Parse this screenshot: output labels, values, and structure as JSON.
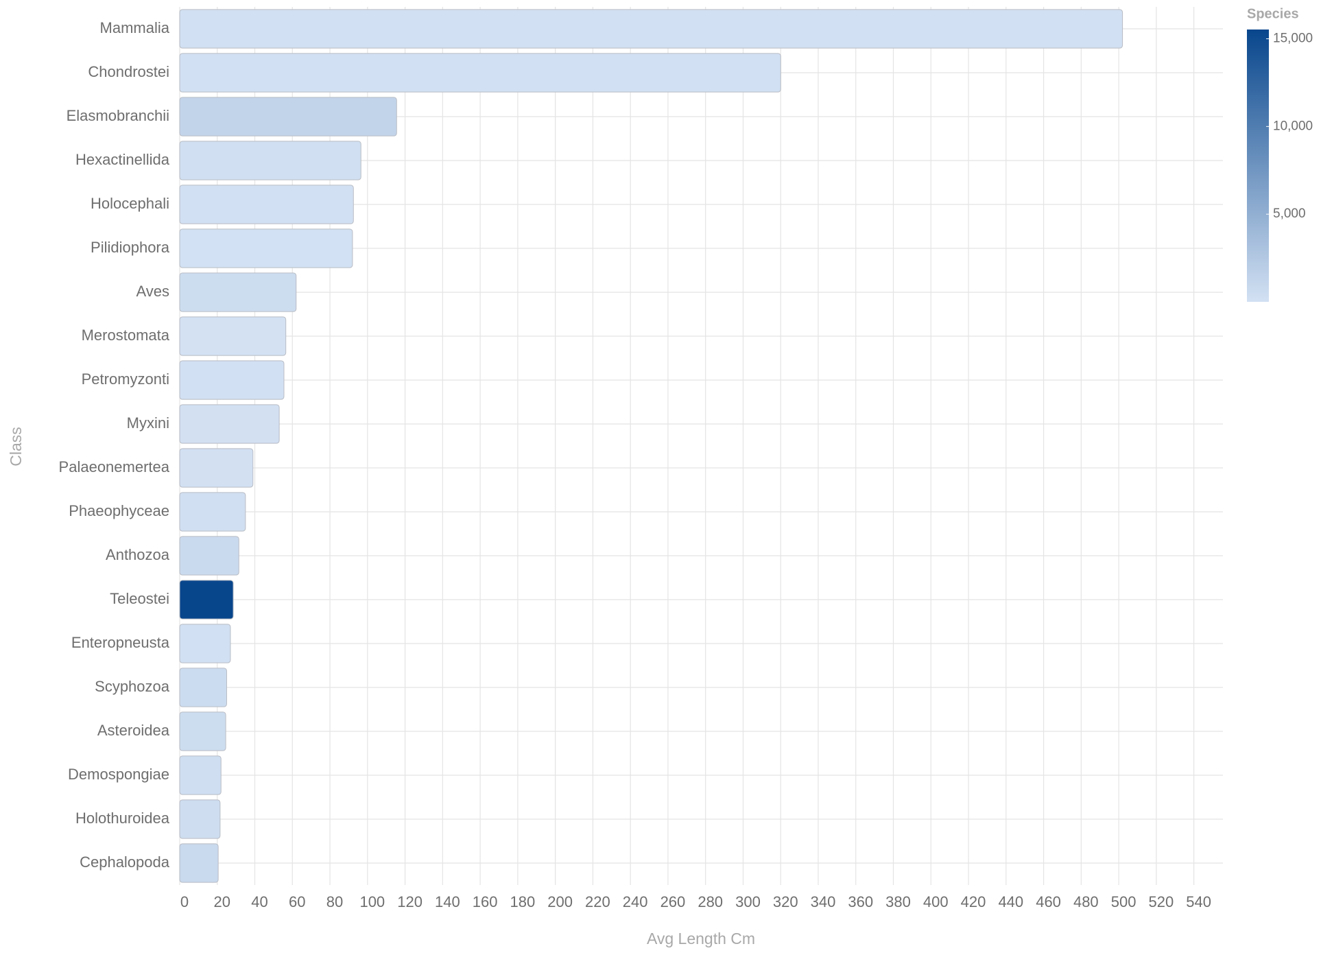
{
  "chart_data": {
    "type": "bar",
    "orientation": "horizontal",
    "x_label": "Avg Length Cm",
    "y_label": "Class",
    "categories": [
      "Mammalia",
      "Chondrostei",
      "Elasmobranchii",
      "Hexactinellida",
      "Holocephali",
      "Pilidiophora",
      "Aves",
      "Merostomata",
      "Petromyzonti",
      "Myxini",
      "Palaeonemertea",
      "Phaeophyceae",
      "Anthozoa",
      "Teleostei",
      "Enteropneusta",
      "Scyphozoa",
      "Asteroidea",
      "Demospongiae",
      "Holothuroidea",
      "Cephalopoda"
    ],
    "values": [
      502,
      320,
      115.5,
      96.5,
      92.5,
      92,
      62,
      56.5,
      55.5,
      53,
      39,
      35,
      31.5,
      28.5,
      27,
      25,
      24.5,
      22,
      21.5,
      20.5
    ],
    "color_values": [
      150,
      60,
      1300,
      250,
      60,
      40,
      450,
      10,
      60,
      90,
      80,
      180,
      700,
      15530,
      150,
      500,
      450,
      300,
      400,
      800
    ],
    "color_title": "Species",
    "colorscale": [
      "#d3e1f3",
      "#08468c"
    ],
    "clim": [
      0,
      15530
    ],
    "cticks": [
      {
        "value": 5000,
        "label": "5,000"
      },
      {
        "value": 10000,
        "label": "10,000"
      },
      {
        "value": 15000,
        "label": "15,000"
      }
    ],
    "xlim": [
      0,
      550
    ],
    "xticks": [
      0,
      20,
      40,
      60,
      80,
      100,
      120,
      140,
      160,
      180,
      200,
      220,
      240,
      260,
      280,
      300,
      320,
      340,
      360,
      380,
      400,
      420,
      440,
      460,
      480,
      500,
      520,
      540
    ],
    "grid": true
  }
}
